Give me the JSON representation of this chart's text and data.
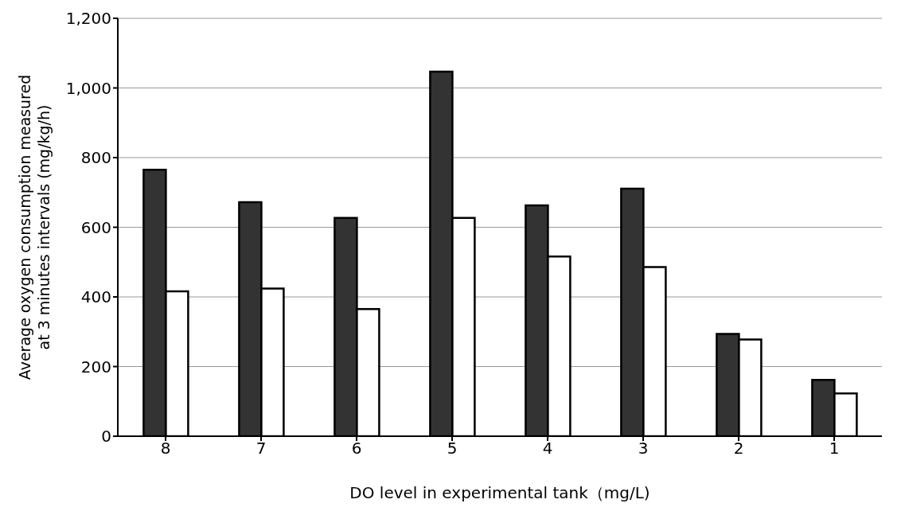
{
  "chart_data": {
    "type": "bar",
    "xlabel": "DO level in experimental tank（mg/L)",
    "ylabel": "Average oxygen consumption measured\nat 3 minutes  intervals (mg/kg/h)",
    "categories": [
      "8",
      "7",
      "6",
      "5",
      "4",
      "3",
      "2",
      "1"
    ],
    "series": [
      {
        "color": "#333333",
        "values": [
          765,
          672,
          627,
          1047,
          663,
          711,
          294,
          162
        ]
      },
      {
        "color": "#ffffff",
        "values": [
          416,
          424,
          365,
          627,
          516,
          486,
          278,
          123
        ]
      }
    ],
    "ylim": [
      0,
      1200
    ],
    "yticks": [
      0,
      {
        "value": 200,
        "label": "200"
      },
      {
        "value": 400,
        "label": "400"
      },
      {
        "value": 600,
        "label": "600"
      },
      {
        "value": 800,
        "label": "800"
      },
      {
        "value": 1000,
        "label": "1,000"
      },
      {
        "value": 1200,
        "label": "1,200"
      }
    ],
    "grid": "y",
    "legend": false
  }
}
